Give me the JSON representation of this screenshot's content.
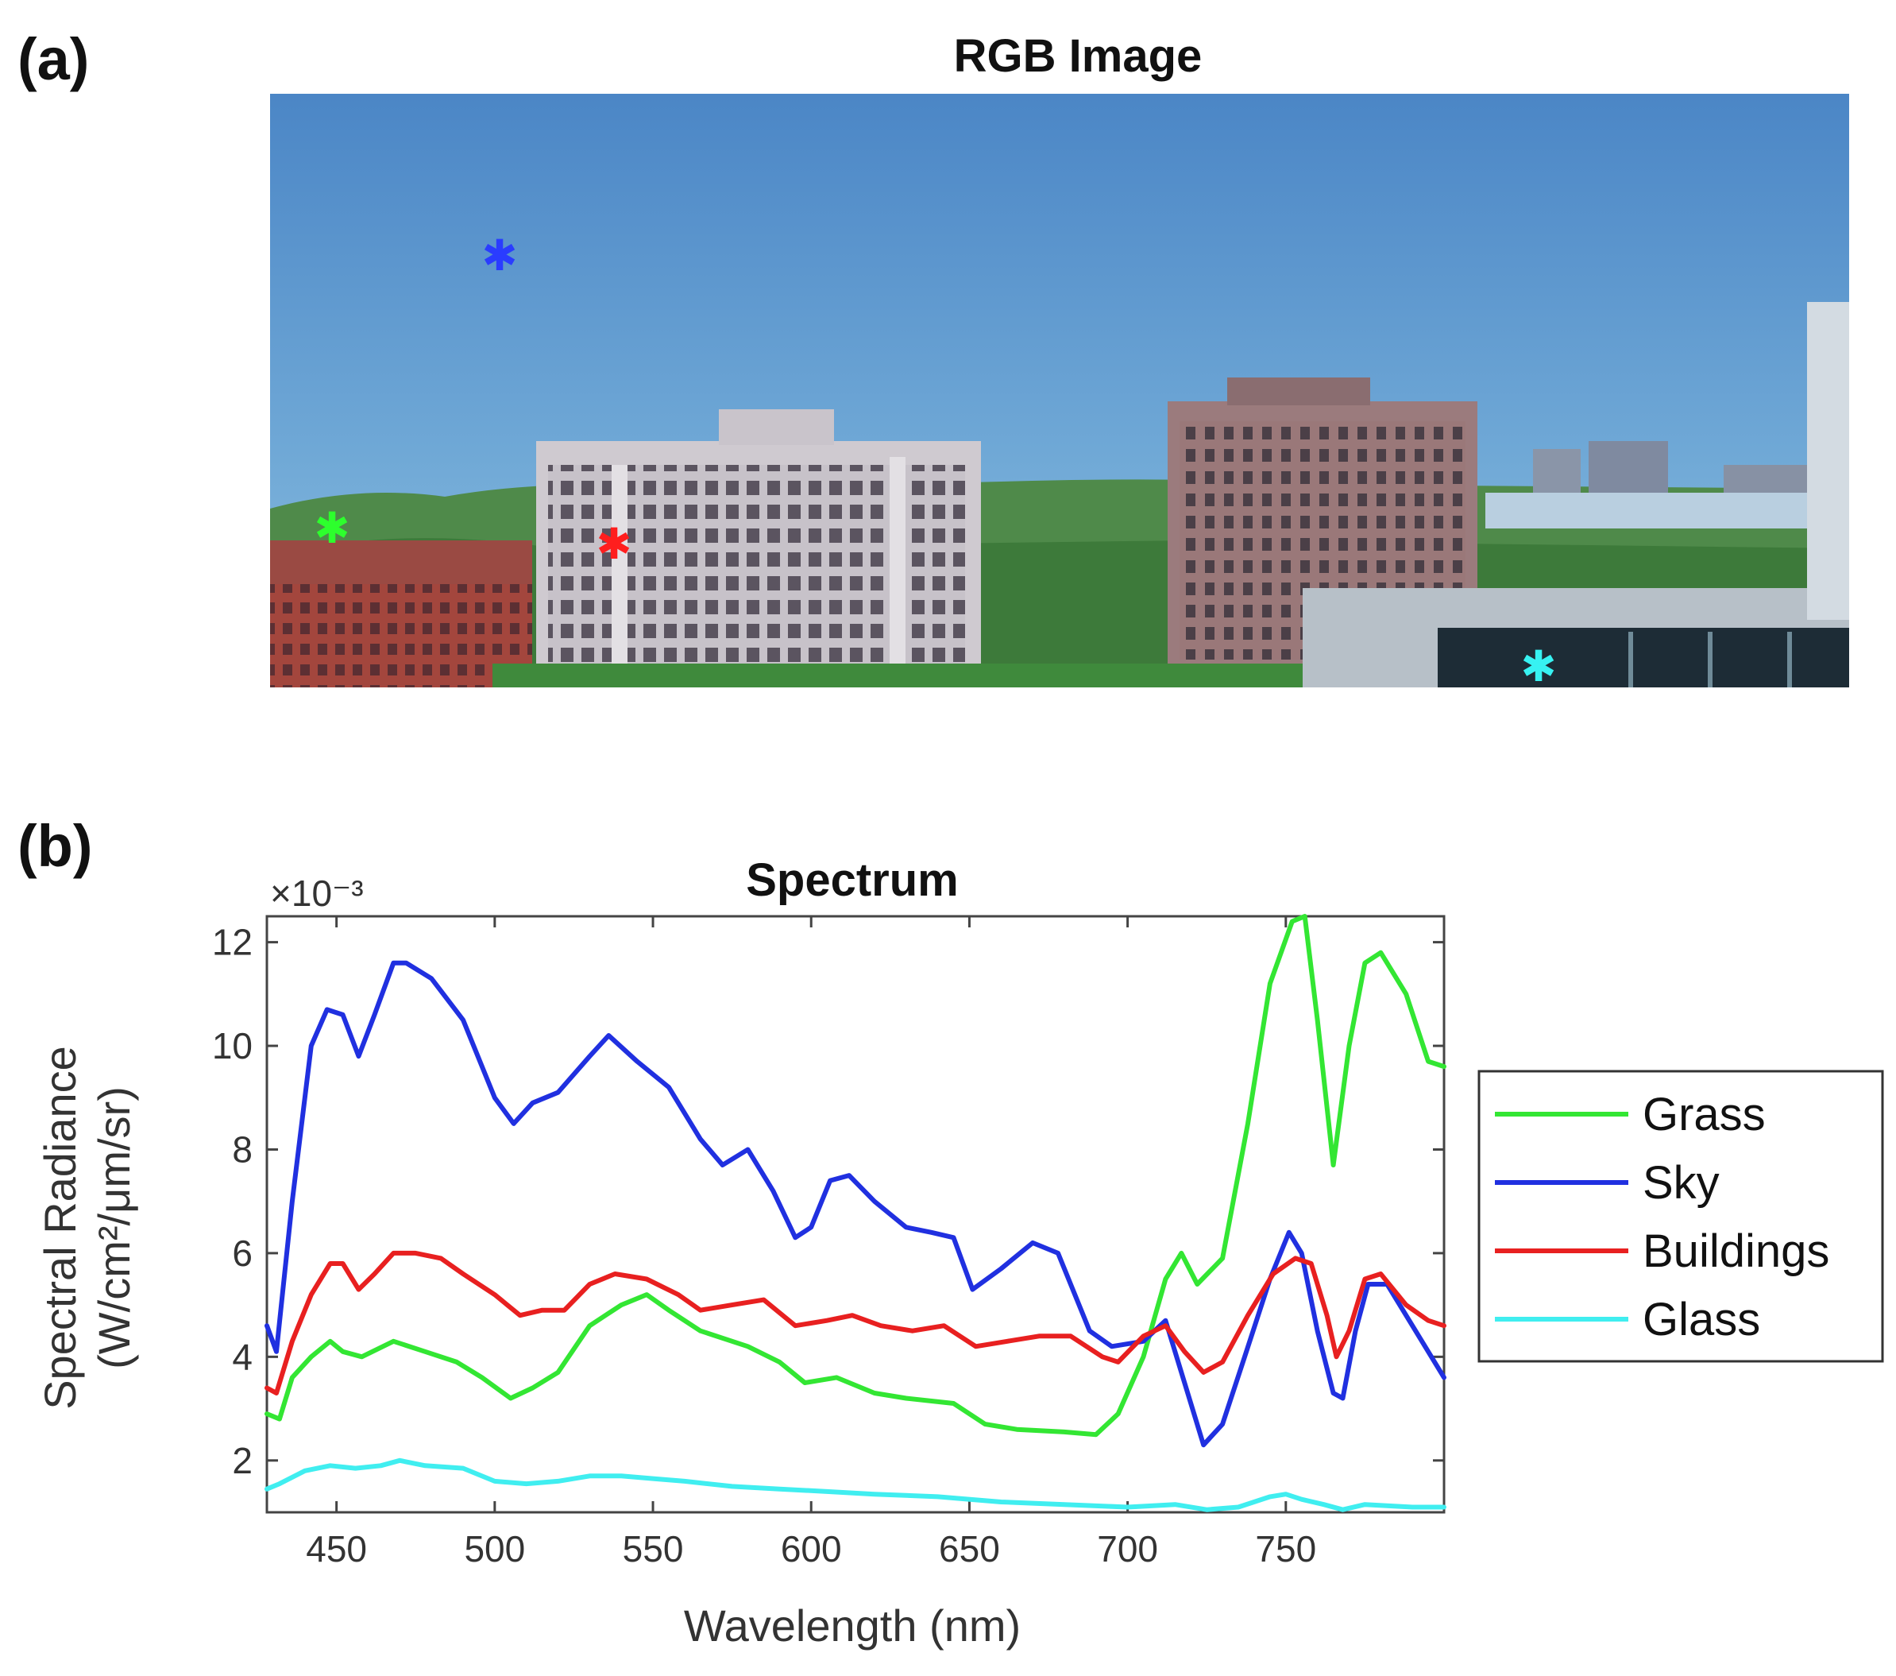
{
  "panels": {
    "a": {
      "letter": "(a)",
      "title": "RGB Image"
    },
    "b": {
      "letter": "(b)"
    }
  },
  "image_markers": [
    {
      "name": "Sky",
      "color": "#2a3cff"
    },
    {
      "name": "Grass",
      "color": "#2dff2d"
    },
    {
      "name": "Buildings",
      "color": "#ff1e1e"
    },
    {
      "name": "Glass",
      "color": "#37f2f2"
    }
  ],
  "chart_data": {
    "type": "line",
    "title": "Spectrum",
    "xlabel": "Wavelength (nm)",
    "ylabel_line1": "Spectral Radiance",
    "ylabel_line2": "(W/cm²/μm/sr)",
    "y_exponent_label": "×10⁻³",
    "xlim": [
      428,
      800
    ],
    "ylim": [
      1,
      12.5
    ],
    "x_ticks": [
      450,
      500,
      550,
      600,
      650,
      700,
      750
    ],
    "y_ticks": [
      2,
      4,
      6,
      8,
      10,
      12
    ],
    "grid": false,
    "legend_position": "right",
    "series": [
      {
        "name": "Grass",
        "color": "#33e633",
        "points": [
          [
            428,
            2.9
          ],
          [
            432,
            2.8
          ],
          [
            436,
            3.6
          ],
          [
            442,
            4.0
          ],
          [
            448,
            4.3
          ],
          [
            452,
            4.1
          ],
          [
            458,
            4.0
          ],
          [
            468,
            4.3
          ],
          [
            478,
            4.1
          ],
          [
            488,
            3.9
          ],
          [
            496,
            3.6
          ],
          [
            505,
            3.2
          ],
          [
            512,
            3.4
          ],
          [
            520,
            3.7
          ],
          [
            530,
            4.6
          ],
          [
            540,
            5.0
          ],
          [
            548,
            5.2
          ],
          [
            555,
            4.9
          ],
          [
            565,
            4.5
          ],
          [
            580,
            4.2
          ],
          [
            590,
            3.9
          ],
          [
            598,
            3.5
          ],
          [
            608,
            3.6
          ],
          [
            620,
            3.3
          ],
          [
            630,
            3.2
          ],
          [
            645,
            3.1
          ],
          [
            655,
            2.7
          ],
          [
            665,
            2.6
          ],
          [
            680,
            2.55
          ],
          [
            690,
            2.5
          ],
          [
            697,
            2.9
          ],
          [
            705,
            4.0
          ],
          [
            712,
            5.5
          ],
          [
            717,
            6.0
          ],
          [
            722,
            5.4
          ],
          [
            730,
            5.9
          ],
          [
            738,
            8.5
          ],
          [
            745,
            11.2
          ],
          [
            752,
            12.4
          ],
          [
            756,
            12.5
          ],
          [
            760,
            10.5
          ],
          [
            765,
            7.7
          ],
          [
            770,
            10.0
          ],
          [
            775,
            11.6
          ],
          [
            780,
            11.8
          ],
          [
            788,
            11.0
          ],
          [
            795,
            9.7
          ],
          [
            800,
            9.6
          ]
        ]
      },
      {
        "name": "Sky",
        "color": "#2030e0",
        "points": [
          [
            428,
            4.6
          ],
          [
            431,
            4.1
          ],
          [
            436,
            7.0
          ],
          [
            442,
            10.0
          ],
          [
            447,
            10.7
          ],
          [
            452,
            10.6
          ],
          [
            457,
            9.8
          ],
          [
            462,
            10.6
          ],
          [
            468,
            11.6
          ],
          [
            472,
            11.6
          ],
          [
            480,
            11.3
          ],
          [
            490,
            10.5
          ],
          [
            500,
            9.0
          ],
          [
            506,
            8.5
          ],
          [
            512,
            8.9
          ],
          [
            520,
            9.1
          ],
          [
            530,
            9.8
          ],
          [
            536,
            10.2
          ],
          [
            545,
            9.7
          ],
          [
            555,
            9.2
          ],
          [
            565,
            8.2
          ],
          [
            572,
            7.7
          ],
          [
            580,
            8.0
          ],
          [
            588,
            7.2
          ],
          [
            595,
            6.3
          ],
          [
            600,
            6.5
          ],
          [
            606,
            7.4
          ],
          [
            612,
            7.5
          ],
          [
            620,
            7.0
          ],
          [
            630,
            6.5
          ],
          [
            638,
            6.4
          ],
          [
            645,
            6.3
          ],
          [
            651,
            5.3
          ],
          [
            660,
            5.7
          ],
          [
            670,
            6.2
          ],
          [
            678,
            6.0
          ],
          [
            688,
            4.5
          ],
          [
            695,
            4.2
          ],
          [
            705,
            4.3
          ],
          [
            712,
            4.7
          ],
          [
            718,
            3.5
          ],
          [
            724,
            2.3
          ],
          [
            730,
            2.7
          ],
          [
            737,
            4.0
          ],
          [
            745,
            5.5
          ],
          [
            751,
            6.4
          ],
          [
            755,
            6.0
          ],
          [
            760,
            4.5
          ],
          [
            765,
            3.3
          ],
          [
            768,
            3.2
          ],
          [
            772,
            4.5
          ],
          [
            776,
            5.4
          ],
          [
            782,
            5.4
          ],
          [
            790,
            4.6
          ],
          [
            800,
            3.6
          ]
        ]
      },
      {
        "name": "Buildings",
        "color": "#e82020",
        "points": [
          [
            428,
            3.4
          ],
          [
            431,
            3.3
          ],
          [
            436,
            4.3
          ],
          [
            442,
            5.2
          ],
          [
            448,
            5.8
          ],
          [
            452,
            5.8
          ],
          [
            457,
            5.3
          ],
          [
            462,
            5.6
          ],
          [
            468,
            6.0
          ],
          [
            475,
            6.0
          ],
          [
            483,
            5.9
          ],
          [
            490,
            5.6
          ],
          [
            500,
            5.2
          ],
          [
            508,
            4.8
          ],
          [
            515,
            4.9
          ],
          [
            522,
            4.9
          ],
          [
            530,
            5.4
          ],
          [
            538,
            5.6
          ],
          [
            548,
            5.5
          ],
          [
            558,
            5.2
          ],
          [
            565,
            4.9
          ],
          [
            575,
            5.0
          ],
          [
            585,
            5.1
          ],
          [
            595,
            4.6
          ],
          [
            605,
            4.7
          ],
          [
            613,
            4.8
          ],
          [
            622,
            4.6
          ],
          [
            632,
            4.5
          ],
          [
            642,
            4.6
          ],
          [
            652,
            4.2
          ],
          [
            662,
            4.3
          ],
          [
            672,
            4.4
          ],
          [
            682,
            4.4
          ],
          [
            692,
            4.0
          ],
          [
            697,
            3.9
          ],
          [
            705,
            4.4
          ],
          [
            712,
            4.6
          ],
          [
            718,
            4.1
          ],
          [
            724,
            3.7
          ],
          [
            730,
            3.9
          ],
          [
            738,
            4.8
          ],
          [
            746,
            5.6
          ],
          [
            753,
            5.9
          ],
          [
            758,
            5.8
          ],
          [
            763,
            4.8
          ],
          [
            766,
            4.0
          ],
          [
            770,
            4.5
          ],
          [
            775,
            5.5
          ],
          [
            780,
            5.6
          ],
          [
            788,
            5.0
          ],
          [
            795,
            4.7
          ],
          [
            800,
            4.6
          ]
        ]
      },
      {
        "name": "Glass",
        "color": "#40eef0",
        "points": [
          [
            428,
            1.45
          ],
          [
            432,
            1.55
          ],
          [
            440,
            1.8
          ],
          [
            448,
            1.9
          ],
          [
            456,
            1.85
          ],
          [
            464,
            1.9
          ],
          [
            470,
            2.0
          ],
          [
            478,
            1.9
          ],
          [
            490,
            1.85
          ],
          [
            500,
            1.6
          ],
          [
            510,
            1.55
          ],
          [
            520,
            1.6
          ],
          [
            530,
            1.7
          ],
          [
            540,
            1.7
          ],
          [
            550,
            1.65
          ],
          [
            560,
            1.6
          ],
          [
            575,
            1.5
          ],
          [
            590,
            1.45
          ],
          [
            605,
            1.4
          ],
          [
            620,
            1.35
          ],
          [
            640,
            1.3
          ],
          [
            660,
            1.2
          ],
          [
            680,
            1.15
          ],
          [
            700,
            1.1
          ],
          [
            715,
            1.15
          ],
          [
            725,
            1.05
          ],
          [
            735,
            1.1
          ],
          [
            745,
            1.3
          ],
          [
            750,
            1.35
          ],
          [
            755,
            1.25
          ],
          [
            762,
            1.15
          ],
          [
            768,
            1.05
          ],
          [
            775,
            1.15
          ],
          [
            790,
            1.1
          ],
          [
            800,
            1.1
          ]
        ]
      }
    ]
  }
}
